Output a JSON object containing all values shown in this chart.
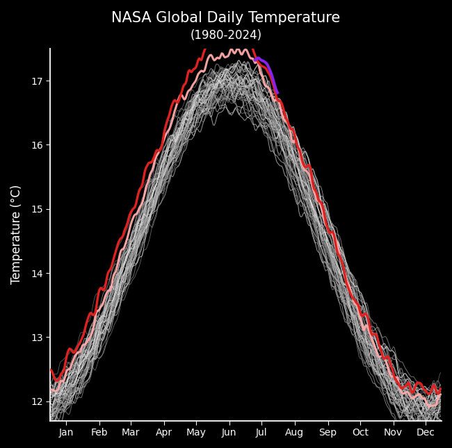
{
  "title": "NASA Global Daily Temperature",
  "subtitle": "(1980-2024)",
  "ylabel": "Temperature (°C)",
  "background_color": "#000000",
  "text_color": "#ffffff",
  "axis_color": "#ffffff",
  "title_fontsize": 15,
  "subtitle_fontsize": 12,
  "ylabel_fontsize": 12,
  "tick_fontsize": 10,
  "ylim": [
    11.7,
    17.5
  ],
  "months": [
    "Jan",
    "Feb",
    "Mar",
    "Apr",
    "May",
    "Jun",
    "Jul",
    "Aug",
    "Sep",
    "Oct",
    "Nov",
    "Dec"
  ],
  "month_centers": [
    15,
    46,
    75,
    106,
    136,
    167,
    197,
    228,
    259,
    289,
    320,
    350
  ],
  "historical_color_range": [
    0.5,
    0.95
  ],
  "year2023_color": "#dd2222",
  "year2024_color": "#ffaaaa",
  "july22_color": "#8822ee",
  "num_historical_years": 43,
  "noise_scale_hist": 0.18,
  "noise_scale_special": 0.12
}
